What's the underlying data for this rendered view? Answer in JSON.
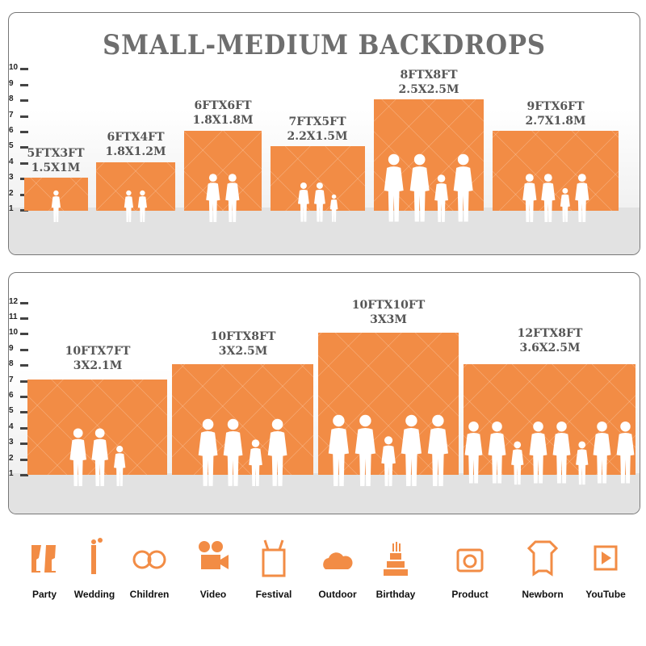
{
  "title": "SMALL-MEDIUM BACKDROPS",
  "accent": "#f28c45",
  "top_scale": [
    "1",
    "2",
    "3",
    "4",
    "5",
    "6",
    "7",
    "8",
    "9",
    "10"
  ],
  "bottom_scale": [
    "1",
    "2",
    "3",
    "4",
    "5",
    "6",
    "7",
    "8",
    "9",
    "10",
    "11",
    "12"
  ],
  "top_sizes": [
    {
      "ft": "5FTX3FT",
      "m": "1.5X1M"
    },
    {
      "ft": "6FTX4FT",
      "m": "1.8X1.2M"
    },
    {
      "ft": "6FTX6FT",
      "m": "1.8X1.8M"
    },
    {
      "ft": "7FTX5FT",
      "m": "2.2X1.5M"
    },
    {
      "ft": "8FTX8FT",
      "m": "2.5X2.5M"
    },
    {
      "ft": "9FTX6FT",
      "m": "2.7X1.8M"
    }
  ],
  "bottom_sizes": [
    {
      "ft": "10FTX7FT",
      "m": "3X2.1M"
    },
    {
      "ft": "10FTX8FT",
      "m": "3X2.5M"
    },
    {
      "ft": "10FTX10FT",
      "m": "3X3M"
    },
    {
      "ft": "12FTX8FT",
      "m": "3.6X2.5M"
    }
  ],
  "uses": [
    {
      "label": "Party",
      "icon": "champagne-glasses-icon"
    },
    {
      "label": "Wedding",
      "icon": "wedding-couple-icon"
    },
    {
      "label": "Children",
      "icon": "children-faces-icon"
    },
    {
      "label": "Video",
      "icon": "film-camera-icon"
    },
    {
      "label": "Festival",
      "icon": "gift-box-icon"
    },
    {
      "label": "Outdoor",
      "icon": "cloud-icon"
    },
    {
      "label": "Birthday",
      "icon": "birthday-cake-icon"
    },
    {
      "label": "Product",
      "icon": "camera-icon"
    },
    {
      "label": "Newborn",
      "icon": "baby-onesie-icon"
    },
    {
      "label": "YouTube",
      "icon": "play-button-icon"
    }
  ]
}
